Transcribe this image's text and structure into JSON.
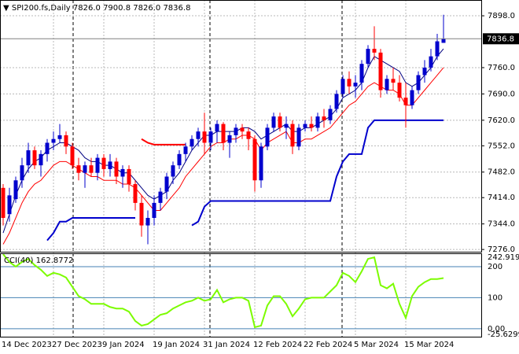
{
  "chart_data": [
    {
      "type": "candlestick",
      "title": "SPI200.fs,Daily",
      "ohlc_labels": [
        "7826.0",
        "7900.8",
        "7826.0",
        "7836.8"
      ],
      "categories": [
        "14 Dec 2023",
        null,
        null,
        null,
        null,
        null,
        null,
        null,
        "27 Dec 2023",
        null,
        null,
        null,
        null,
        null,
        null,
        null,
        "9 Jan 2024",
        null,
        null,
        null,
        null,
        null,
        null,
        null,
        "19 Jan 2024",
        null,
        null,
        null,
        null,
        null,
        null,
        null,
        "31 Jan 2024",
        null,
        null,
        null,
        null,
        null,
        null,
        null,
        "12 Feb 2024",
        null,
        null,
        null,
        null,
        null,
        null,
        null,
        "22 Feb 2024",
        null,
        null,
        null,
        null,
        null,
        null,
        null,
        "5 Mar 2024",
        null,
        null,
        null,
        null,
        null,
        null,
        null,
        "15 Mar 2024",
        null,
        null,
        null,
        null,
        null,
        null
      ],
      "open": [
        7440,
        7370,
        7410,
        7460,
        7500,
        7540,
        7500,
        7530,
        7560,
        7570,
        7580,
        7550,
        7500,
        7480,
        7500,
        7480,
        7520,
        7490,
        7510,
        7470,
        7490,
        7450,
        7400,
        7340,
        7360,
        7400,
        7430,
        7470,
        7500,
        7530,
        7550,
        7570,
        7590,
        7560,
        7590,
        7610,
        7560,
        7580,
        7600,
        7590,
        7570,
        7460,
        7550,
        7600,
        7630,
        7600,
        7610,
        7550,
        7600,
        7610,
        7600,
        7630,
        7620,
        7650,
        7690,
        7730,
        7710,
        7720,
        7770,
        7810,
        7800,
        7700,
        7730,
        7720,
        7680,
        7660,
        7700,
        7740,
        7760,
        7790,
        7826
      ],
      "high": [
        7450,
        7440,
        7470,
        7520,
        7560,
        7550,
        7540,
        7570,
        7590,
        7610,
        7590,
        7560,
        7520,
        7510,
        7520,
        7530,
        7530,
        7530,
        7520,
        7500,
        7500,
        7460,
        7420,
        7380,
        7420,
        7440,
        7480,
        7510,
        7540,
        7560,
        7580,
        7600,
        7640,
        7600,
        7620,
        7615,
        7590,
        7610,
        7610,
        7600,
        7580,
        7560,
        7610,
        7640,
        7640,
        7630,
        7620,
        7610,
        7620,
        7630,
        7640,
        7650,
        7660,
        7700,
        7740,
        7750,
        7740,
        7780,
        7820,
        7870,
        7810,
        7740,
        7760,
        7740,
        7720,
        7710,
        7750,
        7780,
        7810,
        7850,
        7900.8
      ],
      "low": [
        7340,
        7350,
        7400,
        7440,
        7480,
        7490,
        7470,
        7510,
        7540,
        7560,
        7530,
        7490,
        7460,
        7440,
        7470,
        7460,
        7470,
        7470,
        7450,
        7440,
        7430,
        7380,
        7310,
        7290,
        7340,
        7380,
        7410,
        7450,
        7490,
        7510,
        7540,
        7550,
        7530,
        7540,
        7560,
        7540,
        7520,
        7560,
        7570,
        7540,
        7430,
        7440,
        7540,
        7590,
        7590,
        7570,
        7530,
        7540,
        7590,
        7590,
        7590,
        7600,
        7610,
        7640,
        7680,
        7690,
        7680,
        7700,
        7760,
        7780,
        7680,
        7690,
        7700,
        7670,
        7600,
        7650,
        7690,
        7720,
        7750,
        7780,
        7826
      ],
      "close": [
        7360,
        7420,
        7460,
        7500,
        7540,
        7500,
        7530,
        7560,
        7570,
        7580,
        7550,
        7500,
        7480,
        7500,
        7480,
        7520,
        7490,
        7510,
        7470,
        7490,
        7450,
        7400,
        7340,
        7360,
        7400,
        7430,
        7470,
        7500,
        7530,
        7550,
        7570,
        7590,
        7560,
        7590,
        7610,
        7560,
        7580,
        7600,
        7590,
        7570,
        7460,
        7550,
        7600,
        7630,
        7600,
        7610,
        7550,
        7600,
        7610,
        7600,
        7630,
        7620,
        7650,
        7690,
        7730,
        7710,
        7720,
        7770,
        7810,
        7800,
        7700,
        7730,
        7720,
        7680,
        7660,
        7700,
        7740,
        7760,
        7790,
        7830,
        7836.8
      ],
      "up_color": "#0000cd",
      "down_color": "#ff0000",
      "series": [
        {
          "color": "#000080",
          "width": 1,
          "values": [
            7320,
            7370,
            7420,
            7460,
            7490,
            7510,
            7520,
            7540,
            7550,
            7560,
            7560,
            7550,
            7540,
            7520,
            7510,
            7510,
            7500,
            7500,
            7490,
            7480,
            7480,
            7460,
            7440,
            7420,
            7410,
            7420,
            7430,
            7460,
            7480,
            7510,
            7540,
            7560,
            7580,
            7580,
            7590,
            7590,
            7590,
            7590,
            7600,
            7600,
            7590,
            7570,
            7580,
            7590,
            7600,
            7610,
            7590,
            7590,
            7600,
            7600,
            7610,
            7620,
            7630,
            7650,
            7680,
            7690,
            7700,
            7720,
            7760,
            7790,
            7780,
            7770,
            7760,
            7750,
            7720,
            7710,
            7720,
            7740,
            7760,
            7790,
            7810
          ]
        },
        {
          "color": "#ff0000",
          "width": 1,
          "values": [
            7290,
            7320,
            7360,
            7400,
            7430,
            7450,
            7460,
            7480,
            7500,
            7510,
            7510,
            7500,
            7490,
            7480,
            7470,
            7470,
            7460,
            7460,
            7460,
            7450,
            7450,
            7440,
            7420,
            7400,
            7380,
            7380,
            7400,
            7420,
            7440,
            7470,
            7490,
            7510,
            7530,
            7550,
            7560,
            7560,
            7570,
            7570,
            7580,
            7580,
            7570,
            7540,
            7560,
            7570,
            7580,
            7590,
            7560,
            7560,
            7570,
            7570,
            7580,
            7590,
            7600,
            7620,
            7640,
            7660,
            7670,
            7690,
            7710,
            7720,
            7710,
            7700,
            7700,
            7690,
            7660,
            7660,
            7680,
            7700,
            7720,
            7740,
            7760
          ]
        },
        {
          "color": "#0000cd",
          "width": 2,
          "values": [
            null,
            null,
            null,
            null,
            null,
            null,
            null,
            7300,
            7320,
            7350,
            7350,
            7360,
            7360,
            7360,
            7360,
            7360,
            7360,
            7360,
            7360,
            7360,
            7360,
            7360,
            null,
            null,
            null,
            null,
            null,
            null,
            null,
            null,
            7340,
            7350,
            7390,
            7405,
            7405,
            7405,
            7405,
            7405,
            7405,
            7405,
            7405,
            7405,
            7405,
            7405,
            7405,
            7405,
            7405,
            7405,
            7405,
            7405,
            7405,
            7405,
            7405,
            7470,
            7510,
            7530,
            7530,
            7530,
            7600,
            7620,
            7620,
            7620,
            7620,
            7620,
            7620,
            7620,
            7620,
            7620,
            7620,
            7620,
            7620
          ]
        },
        {
          "color": "#ff0000",
          "width": 2,
          "values": [
            null,
            null,
            null,
            null,
            null,
            null,
            null,
            null,
            null,
            null,
            null,
            null,
            null,
            null,
            null,
            null,
            null,
            null,
            null,
            null,
            null,
            null,
            7570,
            7560,
            7555,
            7555,
            7555,
            7555,
            7555,
            7555,
            null,
            null,
            null,
            null,
            null,
            null,
            null,
            null,
            null,
            null,
            null,
            null,
            null,
            null,
            null,
            null,
            null,
            null,
            null,
            null,
            null,
            null,
            null,
            null,
            null,
            null,
            null,
            null,
            null,
            null,
            null,
            null,
            null,
            null,
            null,
            null,
            null,
            null,
            null,
            null,
            null
          ]
        }
      ],
      "current_price": 7836.8,
      "ylim": [
        7270,
        7940
      ],
      "yticks": [
        {
          "value": 7898,
          "label": "7898.0"
        },
        {
          "value": 7760,
          "label": "7760.0"
        },
        {
          "value": 7690,
          "label": "7690.0"
        },
        {
          "value": 7620,
          "label": "7620.0"
        },
        {
          "value": 7552,
          "label": "7552.0"
        },
        {
          "value": 7482,
          "label": "7482.0"
        },
        {
          "value": 7414,
          "label": "7414.0"
        },
        {
          "value": 7344,
          "label": "7344.0"
        },
        {
          "value": 7276,
          "label": "7276.0"
        }
      ],
      "grid": true
    },
    {
      "type": "line",
      "title": "CCI(40) 162.8772",
      "series": [
        {
          "color": "#7cfc00",
          "width": 2,
          "values": [
            240,
            215,
            200,
            215,
            225,
            205,
            190,
            170,
            180,
            175,
            165,
            135,
            105,
            95,
            80,
            80,
            80,
            70,
            65,
            65,
            55,
            25,
            10,
            15,
            30,
            45,
            50,
            65,
            75,
            85,
            90,
            100,
            90,
            95,
            125,
            85,
            95,
            100,
            100,
            90,
            5,
            10,
            75,
            105,
            105,
            80,
            40,
            65,
            95,
            100,
            100,
            100,
            120,
            140,
            180,
            170,
            150,
            185,
            225,
            230,
            140,
            130,
            145,
            80,
            35,
            105,
            135,
            150,
            160,
            160,
            163
          ]
        }
      ],
      "ylim": [
        -25.6299,
        242.9194
      ],
      "yticks": [
        242.9194,
        200,
        100,
        {
          "value": 0,
          "label": "0.00"
        },
        -25.6299
      ]
    }
  ]
}
